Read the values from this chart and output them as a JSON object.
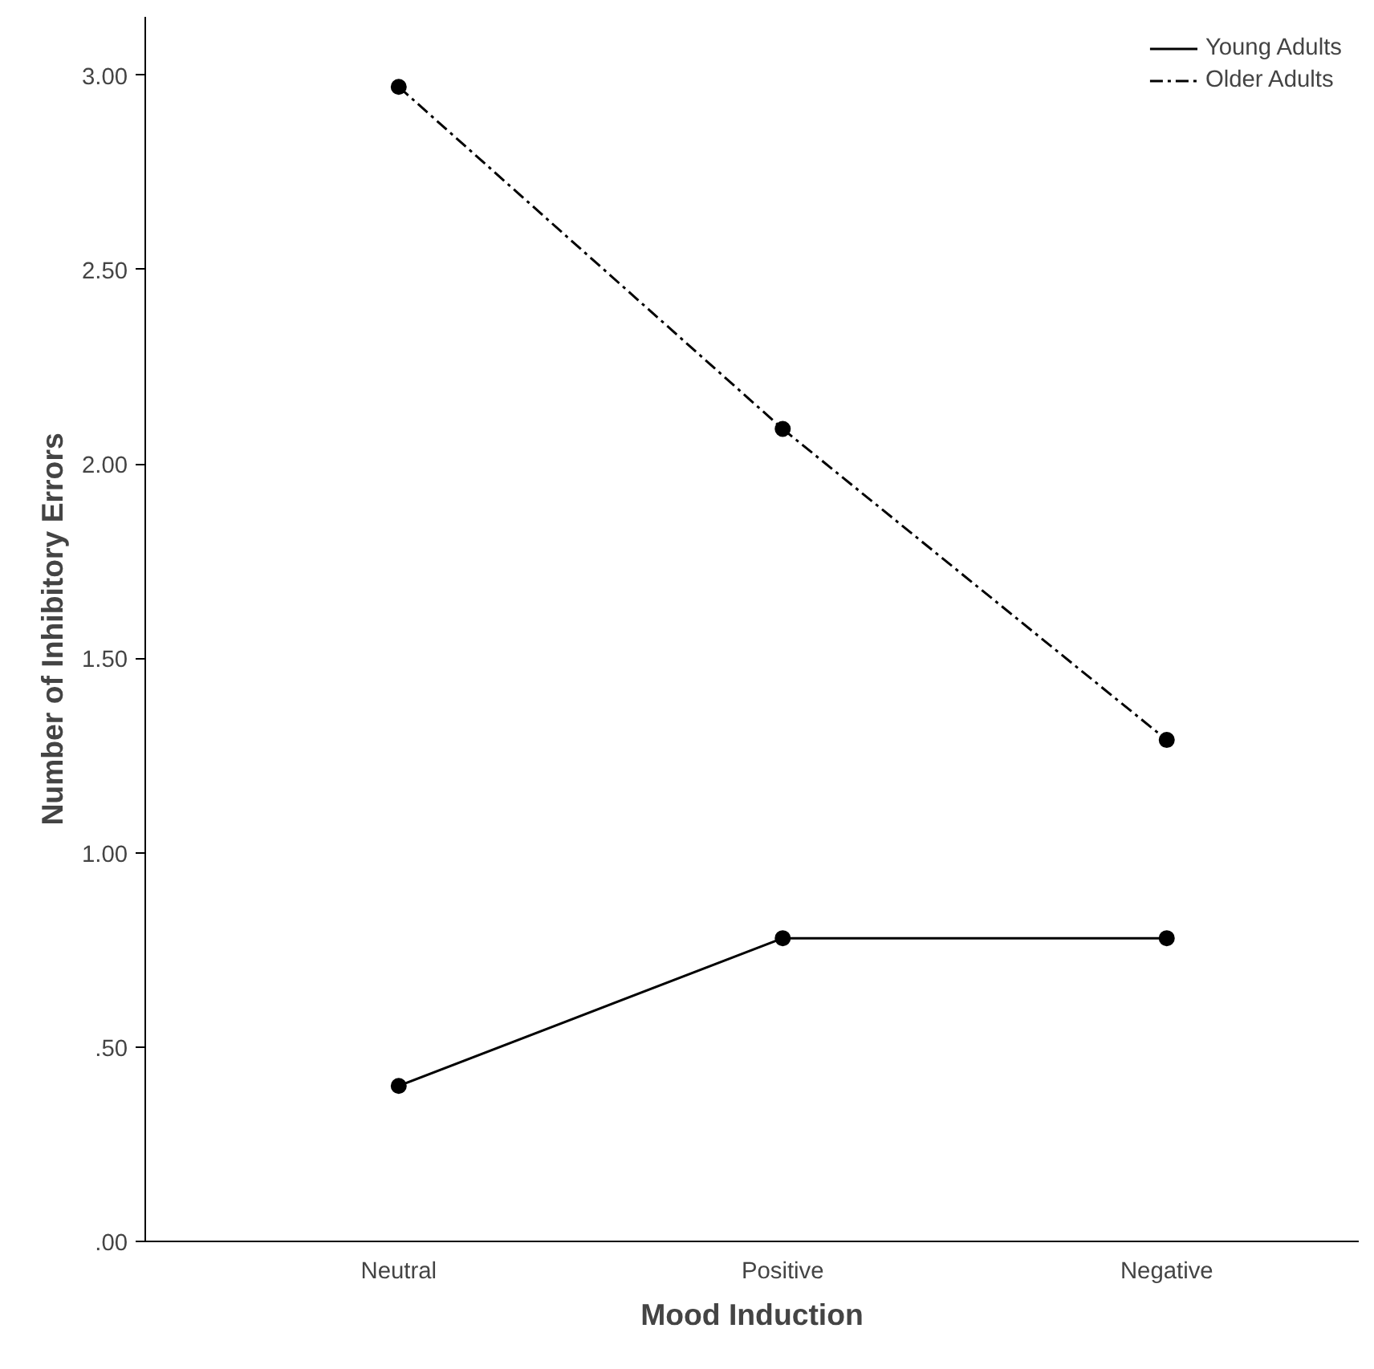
{
  "chart_data": {
    "type": "line",
    "xlabel": "Mood Induction",
    "ylabel": "Number of Inhibitory Errors",
    "categories": [
      "Neutral",
      "Positive",
      "Negative"
    ],
    "series": [
      {
        "name": "Young Adults",
        "color": "#000000",
        "line_style": "solid",
        "values": [
          0.4,
          0.78,
          0.78
        ]
      },
      {
        "name": "Older Adults",
        "color": "#000000",
        "line_style": "dashed",
        "values": [
          2.97,
          2.09,
          1.29
        ]
      }
    ],
    "ylim": [
      0,
      3.15
    ],
    "yticks": [
      {
        "value": 0,
        "label": ".00"
      },
      {
        "value": 0.5,
        "label": ".50"
      },
      {
        "value": 1,
        "label": "1.00"
      },
      {
        "value": 1.5,
        "label": "1.50"
      },
      {
        "value": 2,
        "label": "2.00"
      },
      {
        "value": 2.5,
        "label": "2.50"
      },
      {
        "value": 3,
        "label": "3.00"
      }
    ],
    "marker": "circle",
    "grid": false,
    "legend": "top right"
  }
}
